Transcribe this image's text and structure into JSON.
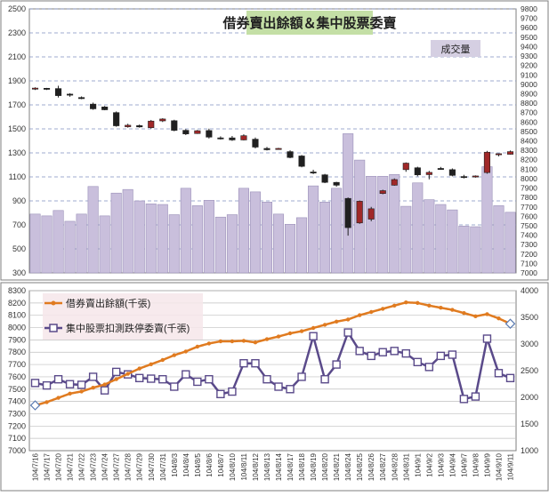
{
  "chart_data": [
    {
      "type": "candlestick+bar",
      "title": "借券賣出餘額＆集中股票委賣",
      "badge": "成交量",
      "left_axis": {
        "min": 300,
        "max": 2500,
        "ticks": [
          300,
          500,
          700,
          900,
          1100,
          1300,
          1500,
          1700,
          1900,
          2100,
          2300,
          2500
        ]
      },
      "right_axis": {
        "min": 7000,
        "max": 9800,
        "step": 100
      },
      "categories": [
        "104/7/16",
        "104/7/17",
        "104/7/20",
        "104/7/21",
        "104/7/22",
        "104/7/23",
        "104/7/24",
        "104/7/27",
        "104/7/28",
        "104/7/29",
        "104/7/30",
        "104/7/31",
        "104/8/3",
        "104/8/4",
        "104/8/5",
        "104/8/6",
        "104/8/7",
        "104/8/10",
        "104/8/11",
        "104/8/12",
        "104/8/13",
        "104/8/14",
        "104/8/17",
        "104/8/18",
        "104/8/19",
        "104/8/20",
        "104/8/21",
        "104/8/24",
        "104/8/25",
        "104/8/26",
        "104/8/27",
        "104/8/28",
        "104/8/31",
        "104/9/1",
        "104/9/2",
        "104/9/3",
        "104/9/4",
        "104/9/7",
        "104/9/8",
        "104/9/9",
        "104/9/10",
        "104/9/11"
      ],
      "volume": [
        790,
        775,
        820,
        730,
        790,
        1020,
        775,
        965,
        995,
        900,
        875,
        870,
        785,
        1005,
        860,
        905,
        765,
        785,
        1005,
        975,
        890,
        790,
        705,
        760,
        1025,
        890,
        1005,
        1460,
        1240,
        1105,
        1105,
        1120,
        855,
        1050,
        910,
        870,
        825,
        690,
        685,
        1185,
        860,
        805
      ],
      "ohlc": [
        [
          8956,
          8968,
          8940,
          8960
        ],
        [
          8958,
          8962,
          8940,
          8948
        ],
        [
          8955,
          8985,
          8860,
          8880
        ],
        [
          8896,
          8906,
          8868,
          8890
        ],
        [
          8860,
          8872,
          8842,
          8848
        ],
        [
          8790,
          8806,
          8730,
          8740
        ],
        [
          8760,
          8770,
          8725,
          8730
        ],
        [
          8700,
          8712,
          8550,
          8560
        ],
        [
          8550,
          8582,
          8540,
          8566
        ],
        [
          8562,
          8574,
          8540,
          8548
        ],
        [
          8540,
          8622,
          8530,
          8610
        ],
        [
          8612,
          8640,
          8600,
          8632
        ],
        [
          8614,
          8624,
          8502,
          8512
        ],
        [
          8512,
          8524,
          8462,
          8474
        ],
        [
          8478,
          8516,
          8474,
          8508
        ],
        [
          8510,
          8530,
          8425,
          8440
        ],
        [
          8432,
          8448,
          8414,
          8422
        ],
        [
          8432,
          8452,
          8400,
          8410
        ],
        [
          8410,
          8470,
          8405,
          8455
        ],
        [
          8418,
          8436,
          8320,
          8334
        ],
        [
          8320,
          8336,
          8298,
          8306
        ],
        [
          8316,
          8326,
          8308,
          8320
        ],
        [
          8286,
          8300,
          8216,
          8224
        ],
        [
          8240,
          8250,
          8120,
          8130
        ],
        [
          8070,
          8094,
          8048,
          8060
        ],
        [
          8040,
          8050,
          7952,
          7960
        ],
        [
          7960,
          7966,
          7914,
          7930
        ],
        [
          7790,
          7800,
          7395,
          7480
        ],
        [
          7530,
          7768,
          7520,
          7760
        ],
        [
          7570,
          7700,
          7548,
          7680
        ],
        [
          7842,
          7882,
          7834,
          7872
        ],
        [
          7930,
          8002,
          7925,
          7990
        ],
        [
          8095,
          8172,
          8072,
          8164
        ],
        [
          8115,
          8126,
          8024,
          8040
        ],
        [
          8042,
          8082,
          7992,
          8066
        ],
        [
          8108,
          8124,
          8094,
          8100
        ],
        [
          8095,
          8108,
          8024,
          8034
        ],
        [
          8022,
          8040,
          8002,
          8016
        ],
        [
          8020,
          8034,
          8010,
          8028
        ],
        [
          8064,
          8294,
          8052,
          8280
        ],
        [
          8256,
          8268,
          8236,
          8264
        ],
        [
          8258,
          8298,
          8254,
          8286
        ]
      ]
    },
    {
      "type": "line",
      "left_axis": {
        "min": 7000,
        "max": 8300,
        "ticks": [
          7000,
          7100,
          7200,
          7300,
          7400,
          7500,
          7600,
          7700,
          7800,
          7900,
          8000,
          8100,
          8200,
          8300
        ]
      },
      "right_axis": {
        "min": 1000,
        "max": 4000,
        "ticks": [
          1000,
          1500,
          2000,
          2500,
          3000,
          3500,
          4000
        ]
      },
      "series": [
        {
          "name": "借券賣出餘額(千張)",
          "axis": "right",
          "color": "#e07b20",
          "values": [
            1850,
            1910,
            1990,
            2070,
            2110,
            2180,
            2240,
            2340,
            2440,
            2540,
            2620,
            2700,
            2790,
            2860,
            2950,
            3010,
            3050,
            3050,
            3060,
            3030,
            3090,
            3140,
            3200,
            3240,
            3300,
            3360,
            3420,
            3460,
            3540,
            3600,
            3660,
            3720,
            3780,
            3770,
            3720,
            3680,
            3640,
            3580,
            3520,
            3560,
            3480,
            3380
          ]
        },
        {
          "name": "集中股票扣測跌停委賣(千張)",
          "axis": "left",
          "color": "#5a4a8a",
          "values": [
            7550,
            7530,
            7580,
            7540,
            7535,
            7600,
            7490,
            7640,
            7620,
            7590,
            7585,
            7580,
            7520,
            7620,
            7560,
            7580,
            7460,
            7480,
            7710,
            7710,
            7580,
            7520,
            7500,
            7600,
            7930,
            7580,
            7700,
            7960,
            7810,
            7770,
            7800,
            7810,
            7790,
            7720,
            7680,
            7770,
            7780,
            7420,
            7440,
            7910,
            7630,
            7590
          ]
        }
      ]
    }
  ]
}
